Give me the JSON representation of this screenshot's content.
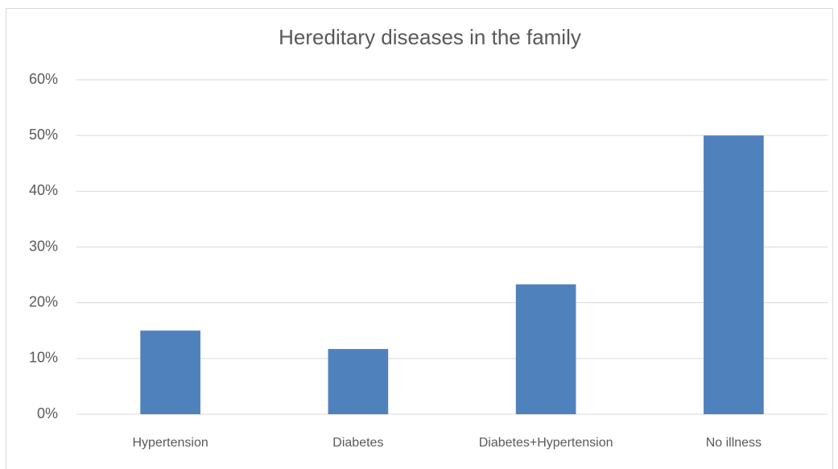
{
  "chart_data": {
    "type": "bar",
    "title": "Hereditary diseases in the family",
    "categories": [
      "Hypertension",
      "Diabetes",
      "Diabetes+Hypertension",
      "No illness"
    ],
    "values": [
      15,
      11.7,
      23.3,
      50
    ],
    "color": "#4f81bd",
    "ylim": [
      0,
      60
    ],
    "yticks": [
      {
        "value": 0,
        "label": "0%"
      },
      {
        "value": 10,
        "label": "10%"
      },
      {
        "value": 20,
        "label": "20%"
      },
      {
        "value": 30,
        "label": "30%"
      },
      {
        "value": 40,
        "label": "40%"
      },
      {
        "value": 50,
        "label": "50%"
      },
      {
        "value": 60,
        "label": "60%"
      }
    ],
    "grid": true
  }
}
